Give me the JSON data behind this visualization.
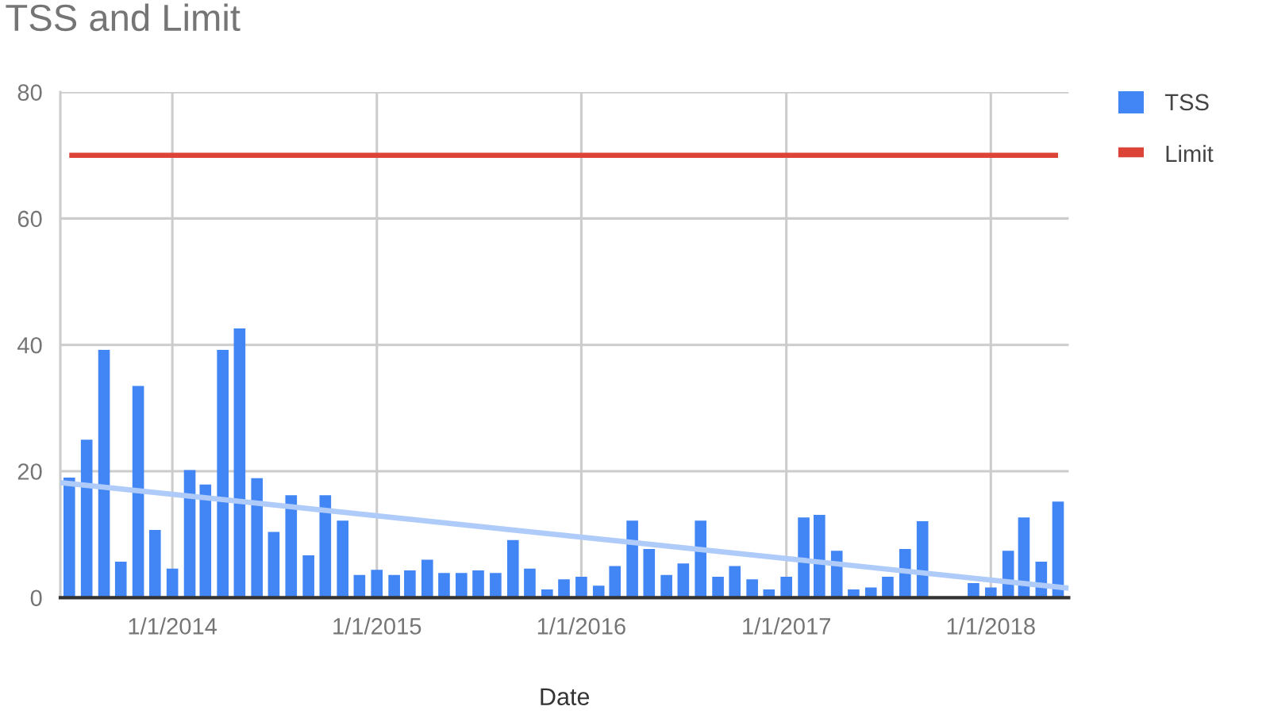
{
  "chart_data": {
    "type": "bar",
    "title": "TSS and Limit",
    "xlabel": "Date",
    "x": [
      "2013-07",
      "2013-08",
      "2013-09",
      "2013-10",
      "2013-11",
      "2013-12",
      "2014-01",
      "2014-02",
      "2014-03",
      "2014-04",
      "2014-05",
      "2014-06",
      "2014-07",
      "2014-08",
      "2014-09",
      "2014-10",
      "2014-11",
      "2014-12",
      "2015-01",
      "2015-02",
      "2015-03",
      "2015-04",
      "2015-05",
      "2015-06",
      "2015-07",
      "2015-08",
      "2015-09",
      "2015-10",
      "2015-11",
      "2015-12",
      "2016-01",
      "2016-02",
      "2016-03",
      "2016-04",
      "2016-05",
      "2016-06",
      "2016-07",
      "2016-08",
      "2016-09",
      "2016-10",
      "2016-11",
      "2016-12",
      "2017-01",
      "2017-02",
      "2017-03",
      "2017-04",
      "2017-05",
      "2017-06",
      "2017-07",
      "2017-08",
      "2017-09",
      "2017-10",
      "2017-11",
      "2017-12",
      "2018-01",
      "2018-02",
      "2018-03",
      "2018-04",
      "2018-05"
    ],
    "series": [
      {
        "name": "TSS",
        "color": "#4285f4",
        "values": [
          19,
          25,
          39.2,
          5.7,
          33.5,
          10.7,
          4.6,
          20.2,
          17.9,
          39.2,
          42.6,
          18.9,
          10.4,
          16.2,
          6.7,
          16.2,
          12.2,
          3.6,
          4.4,
          3.6,
          4.3,
          6.0,
          3.9,
          3.9,
          4.3,
          3.9,
          9.1,
          4.6,
          1.3,
          2.9,
          3.3,
          1.9,
          5.0,
          12.2,
          7.7,
          3.6,
          5.4,
          12.2,
          3.3,
          5.0,
          2.9,
          1.3,
          3.3,
          12.7,
          13.1,
          7.4,
          1.3,
          1.6,
          3.3,
          7.7,
          12.1,
          null,
          null,
          2.3,
          1.6,
          7.4,
          12.7,
          5.7,
          15.2
        ]
      },
      {
        "name": "Limit",
        "type": "line",
        "color": "#db4437",
        "values": [
          70,
          70,
          70,
          70,
          70,
          70,
          70,
          70,
          70,
          70,
          70,
          70,
          70,
          70,
          70,
          70,
          70,
          70,
          70,
          70,
          70,
          70,
          70,
          70,
          70,
          70,
          70,
          70,
          70,
          70,
          70,
          70,
          70,
          70,
          70,
          70,
          70,
          70,
          70,
          70,
          70,
          70,
          70,
          70,
          70,
          70,
          70,
          70,
          70,
          70,
          70,
          70,
          70,
          70,
          70,
          70,
          70,
          70,
          70
        ]
      },
      {
        "type": "line",
        "color": "#aecbfa",
        "x": [
          "2013-06-15",
          "2018-05-20"
        ],
        "values": [
          18.2,
          1.5
        ]
      }
    ],
    "xlim": [
      "2013-06-15",
      "2018-05-20"
    ],
    "xticks": [
      {
        "value": "2014-01-01",
        "label": "1/1/2014"
      },
      {
        "value": "2015-01-01",
        "label": "1/1/2015"
      },
      {
        "value": "2016-01-01",
        "label": "1/1/2016"
      },
      {
        "value": "2017-01-01",
        "label": "1/1/2017"
      },
      {
        "value": "2018-01-01",
        "label": "1/1/2018"
      }
    ],
    "ylim": [
      0,
      80
    ],
    "yticks": [
      0,
      20,
      40,
      60,
      80
    ],
    "grid": true,
    "legend": "top right"
  }
}
